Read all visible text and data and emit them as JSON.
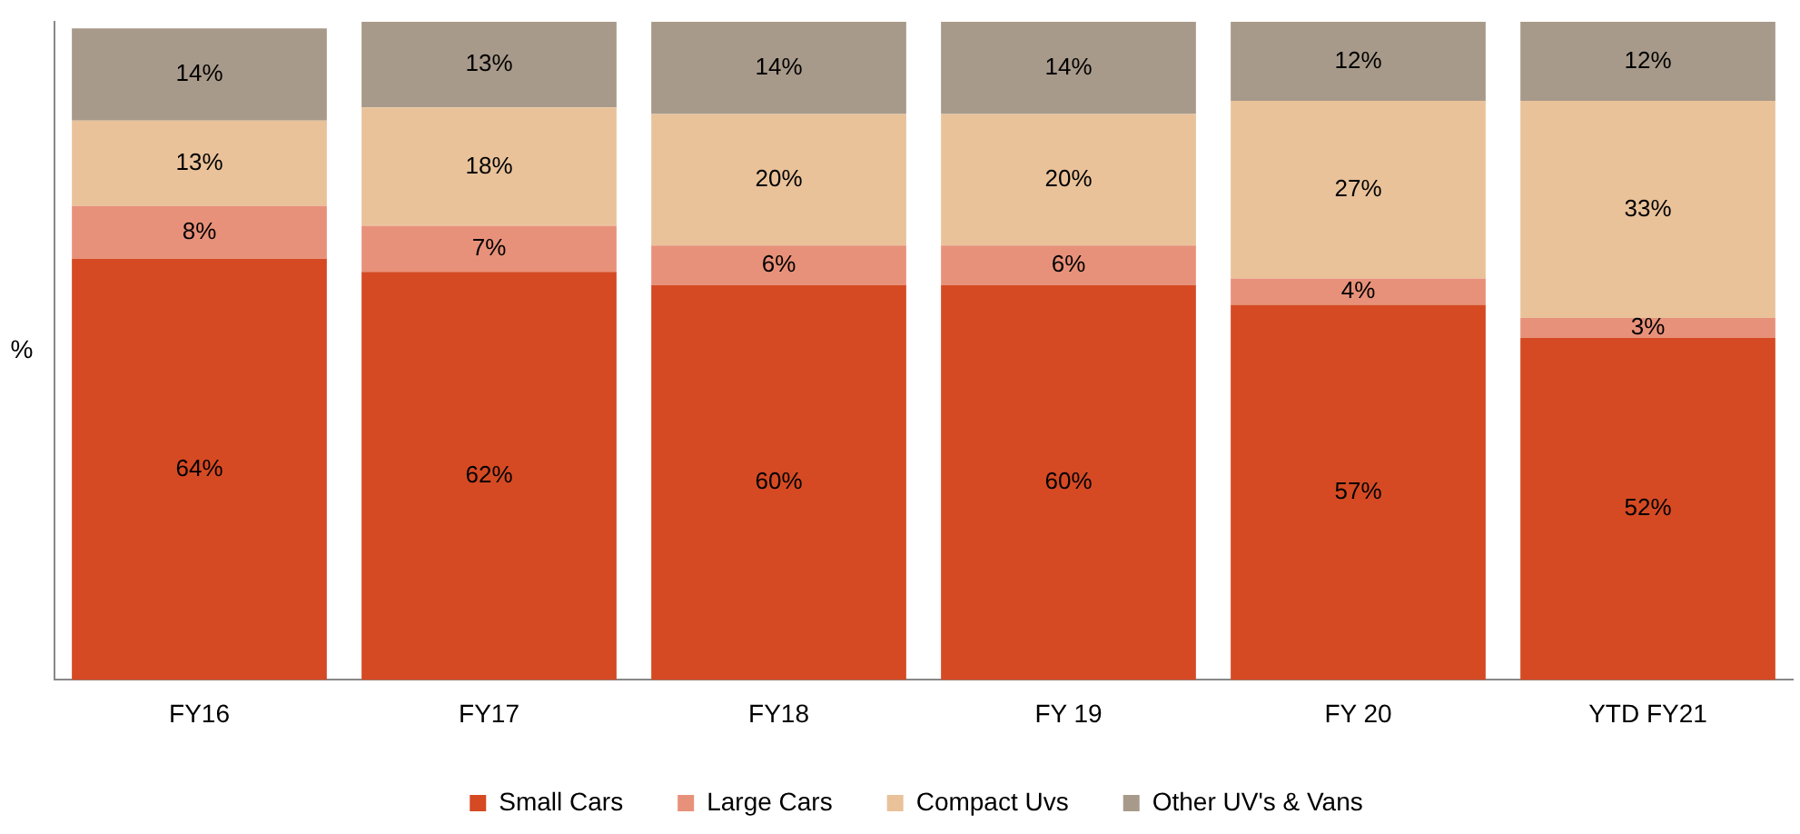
{
  "chart_data": {
    "type": "bar",
    "stacked": true,
    "ylabel": "%",
    "categories": [
      "FY16",
      "FY17",
      "FY18",
      "FY 19",
      "FY 20",
      "YTD FY21"
    ],
    "series": [
      {
        "name": "Small Cars",
        "color": "#d54a23",
        "values": [
          64,
          62,
          60,
          60,
          57,
          52
        ],
        "value_labels": [
          "64%",
          "62%",
          "60%",
          "60%",
          "57%",
          "52%"
        ]
      },
      {
        "name": "Large Cars",
        "color": "#e8917a",
        "values": [
          8,
          7,
          6,
          6,
          4,
          3
        ],
        "value_labels": [
          "8%",
          "7%",
          "6%",
          "6%",
          "4%",
          "3%"
        ]
      },
      {
        "name": "Compact Uvs",
        "color": "#e9c29a",
        "values": [
          13,
          18,
          20,
          20,
          27,
          33
        ],
        "value_labels": [
          "13%",
          "18%",
          "20%",
          "20%",
          "27%",
          "33%"
        ]
      },
      {
        "name": "Other UV's & Vans",
        "color": "#a89a8a",
        "values": [
          14,
          13,
          14,
          14,
          12,
          12
        ],
        "value_labels": [
          "14%",
          "13%",
          "14%",
          "14%",
          "12%",
          "12%"
        ]
      }
    ],
    "legend": "bottom",
    "tick_labels": "x"
  }
}
